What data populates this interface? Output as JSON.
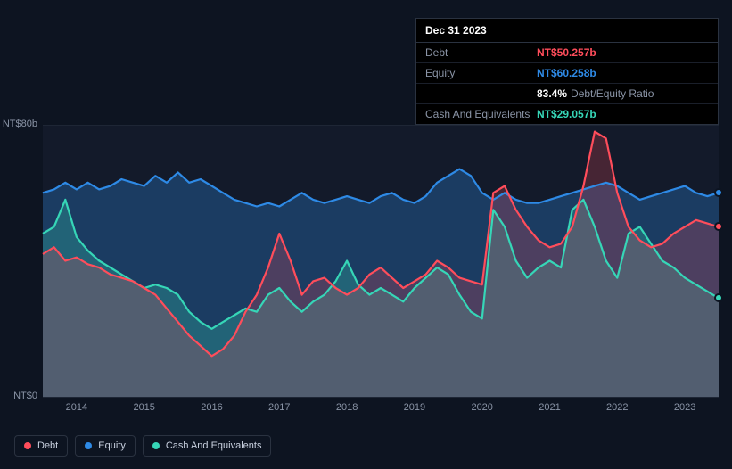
{
  "tooltip": {
    "date": "Dec 31 2023",
    "rows": [
      {
        "label": "Debt",
        "value": "NT$50.257b",
        "color": "#ff4d5b"
      },
      {
        "label": "Equity",
        "value": "NT$60.258b",
        "color": "#2e8ae6"
      },
      {
        "label": "",
        "value": "83.4%",
        "suffix": "Debt/Equity Ratio",
        "color": "#ffffff"
      },
      {
        "label": "Cash And Equivalents",
        "value": "NT$29.057b",
        "color": "#36d6b7"
      }
    ]
  },
  "chart": {
    "type": "area",
    "background_color": "#131a2a",
    "grid_color": "#1e2635",
    "ylim": [
      0,
      80
    ],
    "y_ticks": [
      {
        "v": 80,
        "label": "NT$80b"
      },
      {
        "v": 0,
        "label": "NT$0"
      }
    ],
    "x_categories": [
      "2014",
      "2015",
      "2016",
      "2017",
      "2018",
      "2019",
      "2020",
      "2021",
      "2022",
      "2023"
    ],
    "series": [
      {
        "name": "Equity",
        "color": "#2e8ae6",
        "fill_opacity": 0.3,
        "line_width": 2.2,
        "end_dot": true,
        "values": [
          60,
          61,
          63,
          61,
          63,
          61,
          62,
          64,
          63,
          62,
          65,
          63,
          66,
          63,
          64,
          62,
          60,
          58,
          57,
          56,
          57,
          56,
          58,
          60,
          58,
          57,
          58,
          59,
          58,
          57,
          59,
          60,
          58,
          57,
          59,
          63,
          65,
          67,
          65,
          60,
          58,
          60,
          58,
          57,
          57,
          58,
          59,
          60,
          61,
          62,
          63,
          62,
          60,
          58,
          59,
          60,
          61,
          62,
          60,
          59,
          60
        ]
      },
      {
        "name": "Cash And Equivalents",
        "color": "#36d6b7",
        "fill_opacity": 0.25,
        "line_width": 2.2,
        "end_dot": true,
        "values": [
          48,
          50,
          58,
          47,
          43,
          40,
          38,
          36,
          34,
          32,
          33,
          32,
          30,
          25,
          22,
          20,
          22,
          24,
          26,
          25,
          30,
          32,
          28,
          25,
          28,
          30,
          34,
          40,
          33,
          30,
          32,
          30,
          28,
          32,
          35,
          38,
          36,
          30,
          25,
          23,
          55,
          50,
          40,
          35,
          38,
          40,
          38,
          55,
          58,
          50,
          40,
          35,
          48,
          50,
          45,
          40,
          38,
          35,
          33,
          31,
          29
        ]
      },
      {
        "name": "Debt",
        "color": "#ff4d5b",
        "fill_opacity": 0.22,
        "line_width": 2.2,
        "end_dot": true,
        "values": [
          42,
          44,
          40,
          41,
          39,
          38,
          36,
          35,
          34,
          32,
          30,
          26,
          22,
          18,
          15,
          12,
          14,
          18,
          25,
          30,
          38,
          48,
          40,
          30,
          34,
          35,
          32,
          30,
          32,
          36,
          38,
          35,
          32,
          34,
          36,
          40,
          38,
          35,
          34,
          33,
          60,
          62,
          55,
          50,
          46,
          44,
          45,
          50,
          62,
          78,
          76,
          60,
          50,
          46,
          44,
          45,
          48,
          50,
          52,
          51,
          50
        ]
      }
    ]
  },
  "legend": [
    {
      "label": "Debt",
      "color": "#ff4d5b"
    },
    {
      "label": "Equity",
      "color": "#2e8ae6"
    },
    {
      "label": "Cash And Equivalents",
      "color": "#36d6b7"
    }
  ]
}
